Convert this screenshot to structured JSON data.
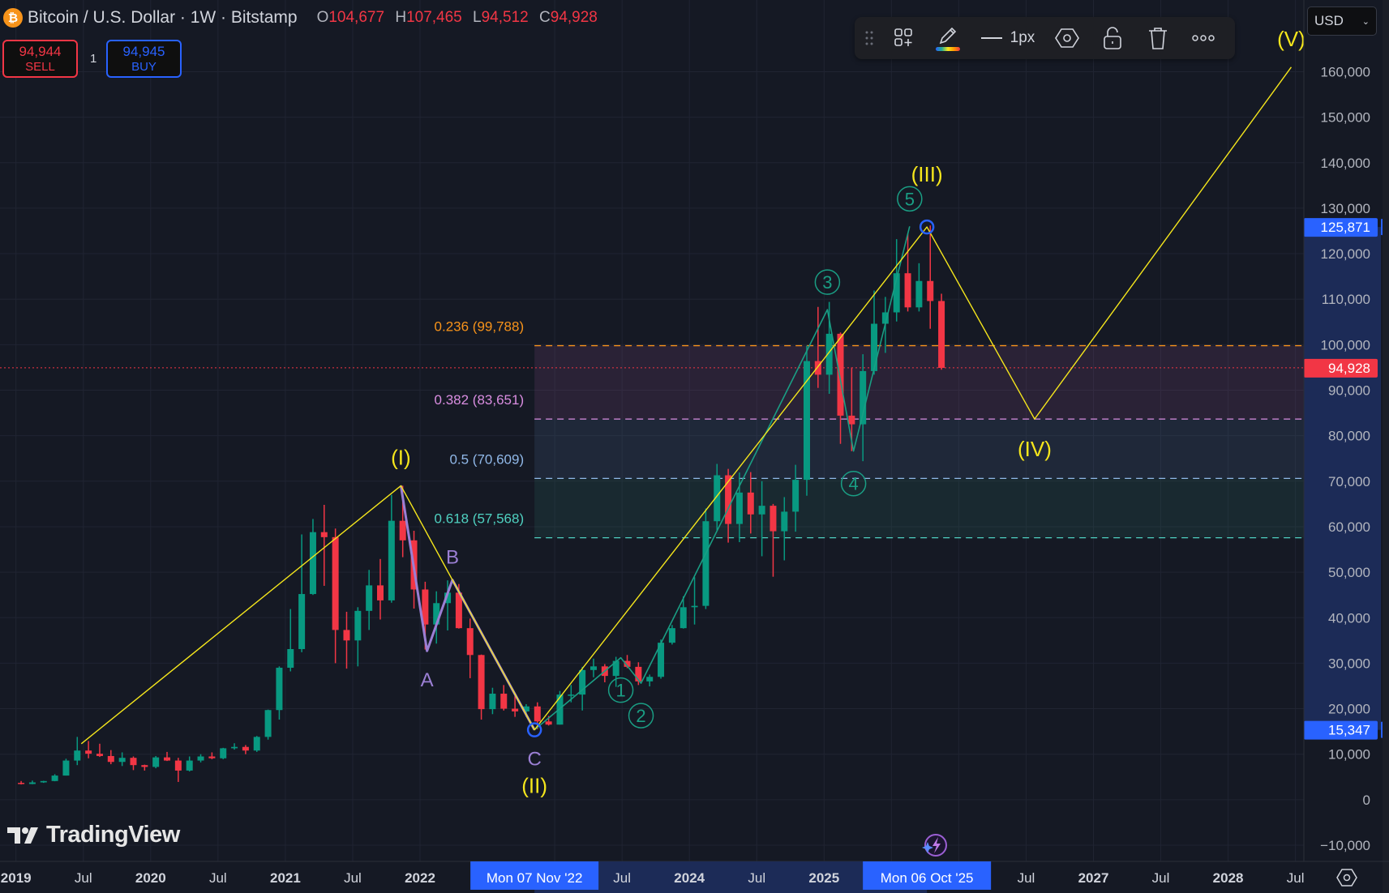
{
  "header": {
    "symbol_icon": "bitcoin-icon",
    "symbol_glyph": "₿",
    "title": "Bitcoin / U.S. Dollar · 1W · Bitstamp",
    "ohlc": {
      "o_label": "O",
      "o": "104,677",
      "h_label": "H",
      "h": "107,465",
      "l_label": "L",
      "l": "94,512",
      "c_label": "C",
      "c": "94,928"
    }
  },
  "trade": {
    "sell_price": "94,944",
    "sell_label": "SELL",
    "quantity": "1",
    "buy_price": "94,945",
    "buy_label": "BUY"
  },
  "toolbar": {
    "icons": [
      "drag-handle-icon",
      "add-template-icon",
      "pencil-color-icon",
      "line-style-icon",
      "settings-hexagon-icon",
      "unlock-icon",
      "trash-icon",
      "more-icon"
    ],
    "line_width_label": "1px"
  },
  "currency": {
    "selected": "USD"
  },
  "branding": {
    "logo_text": "TradingView"
  },
  "colors": {
    "background": "#151924",
    "up": "#089981",
    "down": "#f23645",
    "wave_primary": "#f5e61c",
    "wave_minor": "#1a9e84",
    "wave_correction": "#9b7fd4",
    "marker": "#2962ff",
    "selection": "#1c2b57"
  },
  "price_axis": {
    "ticks": [
      "160,000",
      "150,000",
      "140,000",
      "130,000",
      "120,000",
      "110,000",
      "100,000",
      "90,000",
      "80,000",
      "70,000",
      "60,000",
      "50,000",
      "40,000",
      "30,000",
      "20,000",
      "10,000",
      "0",
      "−10,000"
    ],
    "tick_values": [
      160000,
      150000,
      140000,
      130000,
      120000,
      110000,
      100000,
      90000,
      80000,
      70000,
      60000,
      50000,
      40000,
      30000,
      20000,
      10000,
      0,
      -10000
    ],
    "tags": [
      {
        "label": "125,871",
        "value": 125871,
        "color": "#2962ff"
      },
      {
        "label": "94,928",
        "value": 94928,
        "color": "#f23645"
      },
      {
        "label": "15,347",
        "value": 15347,
        "color": "#2962ff"
      }
    ]
  },
  "time_axis": {
    "labels": [
      {
        "label": "2019",
        "date": "2019-01-01",
        "bold": true
      },
      {
        "label": "Jul",
        "date": "2019-07-01"
      },
      {
        "label": "2020",
        "date": "2020-01-01",
        "bold": true
      },
      {
        "label": "Jul",
        "date": "2020-07-01"
      },
      {
        "label": "2021",
        "date": "2021-01-01",
        "bold": true
      },
      {
        "label": "Jul",
        "date": "2021-07-01"
      },
      {
        "label": "2022",
        "date": "2022-01-01",
        "bold": true
      },
      {
        "label": "Jul",
        "date": "2023-07-01"
      },
      {
        "label": "2024",
        "date": "2024-01-01",
        "bold": true
      },
      {
        "label": "Jul",
        "date": "2024-07-01"
      },
      {
        "label": "2025",
        "date": "2025-01-01",
        "bold": true
      },
      {
        "label": "Jul",
        "date": "2026-07-01"
      },
      {
        "label": "2027",
        "date": "2027-01-01",
        "bold": true
      },
      {
        "label": "Jul",
        "date": "2027-07-01"
      },
      {
        "label": "2028",
        "date": "2028-01-01",
        "bold": true
      },
      {
        "label": "Jul",
        "date": "2028-07-01"
      }
    ],
    "highlights": [
      {
        "label": "Mon 07 Nov '22",
        "date": "2022-11-07"
      },
      {
        "label": "Mon 06 Oct '25",
        "date": "2025-10-06"
      }
    ]
  },
  "chart_data": {
    "type": "candlestick",
    "interval": "1W",
    "ylim": [
      -10000,
      165000
    ],
    "xlim": [
      "2019-01-01",
      "2028-09-01"
    ],
    "grid": true,
    "current_price": 94928,
    "candles_start": "2019-01",
    "candles_monthly_ohlc": [
      [
        3700,
        4100,
        3350,
        3450
      ],
      [
        3450,
        4200,
        3400,
        3800
      ],
      [
        3800,
        4150,
        3700,
        4100
      ],
      [
        4100,
        5600,
        4050,
        5300
      ],
      [
        5300,
        9000,
        5300,
        8600
      ],
      [
        8600,
        13800,
        7600,
        10800
      ],
      [
        10800,
        12900,
        9100,
        10100
      ],
      [
        10100,
        12300,
        9400,
        9600
      ],
      [
        9600,
        10900,
        7800,
        8300
      ],
      [
        8300,
        10400,
        7400,
        9200
      ],
      [
        9200,
        9500,
        6500,
        7600
      ],
      [
        7600,
        7700,
        6400,
        7200
      ],
      [
        7200,
        9600,
        6900,
        9300
      ],
      [
        9300,
        10500,
        8500,
        8600
      ],
      [
        8600,
        9200,
        3900,
        6400
      ],
      [
        6400,
        9500,
        6200,
        8600
      ],
      [
        8600,
        10000,
        8200,
        9500
      ],
      [
        9500,
        10400,
        8900,
        9100
      ],
      [
        9100,
        11400,
        8900,
        11300
      ],
      [
        11300,
        12400,
        11000,
        11600
      ],
      [
        11600,
        12000,
        10000,
        10800
      ],
      [
        10800,
        14000,
        10500,
        13800
      ],
      [
        13800,
        19800,
        13200,
        19700
      ],
      [
        19700,
        29300,
        17600,
        29000
      ],
      [
        29000,
        41900,
        28200,
        33100
      ],
      [
        33100,
        58300,
        32400,
        45200
      ],
      [
        45200,
        61700,
        45000,
        58800
      ],
      [
        58800,
        64800,
        47000,
        57700
      ],
      [
        57700,
        59600,
        30000,
        37300
      ],
      [
        37300,
        41300,
        28800,
        35000
      ],
      [
        35000,
        42300,
        29300,
        41500
      ],
      [
        41500,
        50500,
        37300,
        47100
      ],
      [
        47100,
        52900,
        39600,
        43800
      ],
      [
        43800,
        67000,
        43300,
        61300
      ],
      [
        61300,
        69000,
        53300,
        57000
      ],
      [
        57000,
        59100,
        42000,
        46200
      ],
      [
        46200,
        47900,
        33000,
        38500
      ],
      [
        38500,
        45800,
        34300,
        43200
      ],
      [
        43200,
        48200,
        37200,
        45500
      ],
      [
        45500,
        47400,
        37600,
        37700
      ],
      [
        37700,
        39800,
        26700,
        31800
      ],
      [
        31800,
        31900,
        17600,
        19900
      ],
      [
        19900,
        24600,
        18800,
        23300
      ],
      [
        23300,
        25200,
        19600,
        20000
      ],
      [
        20000,
        22800,
        18200,
        19400
      ],
      [
        19400,
        21000,
        18200,
        20500
      ],
      [
        20500,
        21400,
        15500,
        17200
      ],
      [
        17200,
        18400,
        16300,
        16500
      ],
      [
        16500,
        23900,
        16500,
        23100
      ],
      [
        23100,
        25200,
        21400,
        23100
      ],
      [
        23100,
        29200,
        19600,
        28500
      ],
      [
        28500,
        31000,
        26900,
        29300
      ],
      [
        29300,
        29800,
        25800,
        27200
      ],
      [
        27200,
        31400,
        24800,
        30500
      ],
      [
        30500,
        31800,
        28900,
        29200
      ],
      [
        29200,
        30200,
        25200,
        26000
      ],
      [
        26000,
        27500,
        24900,
        27000
      ],
      [
        27000,
        35200,
        26600,
        34500
      ],
      [
        34500,
        38400,
        34100,
        37700
      ],
      [
        37700,
        44700,
        37600,
        42300
      ],
      [
        42300,
        48900,
        38500,
        42600
      ],
      [
        42600,
        64000,
        41900,
        61200
      ],
      [
        61200,
        73800,
        59200,
        71300
      ],
      [
        71300,
        72700,
        56500,
        60600
      ],
      [
        60600,
        71900,
        56600,
        67500
      ],
      [
        67500,
        72000,
        58500,
        62700
      ],
      [
        62700,
        70000,
        53500,
        64600
      ],
      [
        64600,
        65000,
        49000,
        59000
      ],
      [
        59000,
        66500,
        52600,
        63300
      ],
      [
        63300,
        73600,
        58900,
        70300
      ],
      [
        70300,
        99800,
        66800,
        96400
      ],
      [
        96400,
        108300,
        90500,
        93400
      ],
      [
        93400,
        109400,
        89200,
        102400
      ],
      [
        102400,
        102700,
        78200,
        84400
      ],
      [
        84400,
        95000,
        76600,
        82500
      ],
      [
        82500,
        97900,
        74400,
        94200
      ],
      [
        94200,
        111900,
        93400,
        104600
      ],
      [
        104600,
        110500,
        98200,
        107100
      ],
      [
        107100,
        123200,
        105100,
        115700
      ],
      [
        115700,
        124400,
        107300,
        108200
      ],
      [
        108200,
        117900,
        107300,
        114000
      ],
      [
        114000,
        126200,
        103500,
        109600
      ],
      [
        109600,
        111200,
        94500,
        94900
      ]
    ],
    "annotations": {
      "primary_wave": {
        "points": [
          [
            "2019-06-26",
            12300
          ],
          [
            "2021-11-10",
            69000
          ],
          [
            "2022-11-07",
            15347
          ],
          [
            "2025-10-06",
            125871
          ],
          [
            "2026-07-24",
            83651
          ],
          [
            "2028-06-20",
            161000
          ]
        ],
        "labels": [
          {
            "text": "(I)",
            "date": "2021-11-10",
            "price": 69000,
            "pos": "above"
          },
          {
            "text": "(II)",
            "date": "2022-11-07",
            "price": 15347,
            "pos": "below"
          },
          {
            "text": "(III)",
            "date": "2025-10-06",
            "price": 125871,
            "pos": "above"
          },
          {
            "text": "(IV)",
            "date": "2026-07-24",
            "price": 83651,
            "pos": "below"
          },
          {
            "text": "(V)",
            "date": "2028-06-20",
            "price": 161000,
            "pos": "above"
          }
        ]
      },
      "correction_abc": {
        "points": [
          [
            "2021-11-10",
            69000
          ],
          [
            "2022-01-20",
            32700
          ],
          [
            "2022-03-28",
            48300
          ],
          [
            "2022-11-07",
            15347
          ]
        ],
        "labels": [
          {
            "text": "A",
            "date": "2022-01-20",
            "price": 32700,
            "pos": "below"
          },
          {
            "text": "B",
            "date": "2022-03-28",
            "price": 48300,
            "pos": "above"
          },
          {
            "text": "C",
            "date": "2022-11-07",
            "price": 15347,
            "pos": "below"
          }
        ]
      },
      "minor_wave": {
        "points": [
          [
            "2022-11-07",
            15347
          ],
          [
            "2023-06-28",
            31200
          ],
          [
            "2023-08-22",
            25600
          ],
          [
            "2025-01-10",
            107700
          ],
          [
            "2025-03-20",
            76600
          ],
          [
            "2025-08-20",
            126000
          ]
        ],
        "labels": [
          {
            "text": "1",
            "date": "2023-06-28",
            "price": 31200,
            "pos": "circle-below"
          },
          {
            "text": "2",
            "date": "2023-08-22",
            "price": 25600,
            "pos": "circle-below"
          },
          {
            "text": "3",
            "date": "2025-01-10",
            "price": 107700,
            "pos": "circle-above"
          },
          {
            "text": "4",
            "date": "2025-03-20",
            "price": 76600,
            "pos": "circle-below"
          },
          {
            "text": "5",
            "date": "2025-08-20",
            "price": 126000,
            "pos": "circle-above"
          }
        ]
      },
      "markers": [
        {
          "date": "2022-11-07",
          "price": 15347
        },
        {
          "date": "2025-10-06",
          "price": 125871
        }
      ],
      "fib_start": "2022-11-07",
      "fib_levels": [
        {
          "label": "0.236 (99,788)",
          "value": 99788,
          "color": "#f7931a"
        },
        {
          "label": "0.382 (83,651)",
          "value": 83651,
          "color": "#d98de0"
        },
        {
          "label": "0.5 (70,609)",
          "value": 70609,
          "color": "#90b8e8"
        },
        {
          "label": "0.618 (57,568)",
          "value": 57568,
          "color": "#4fd1c1"
        }
      ]
    }
  }
}
